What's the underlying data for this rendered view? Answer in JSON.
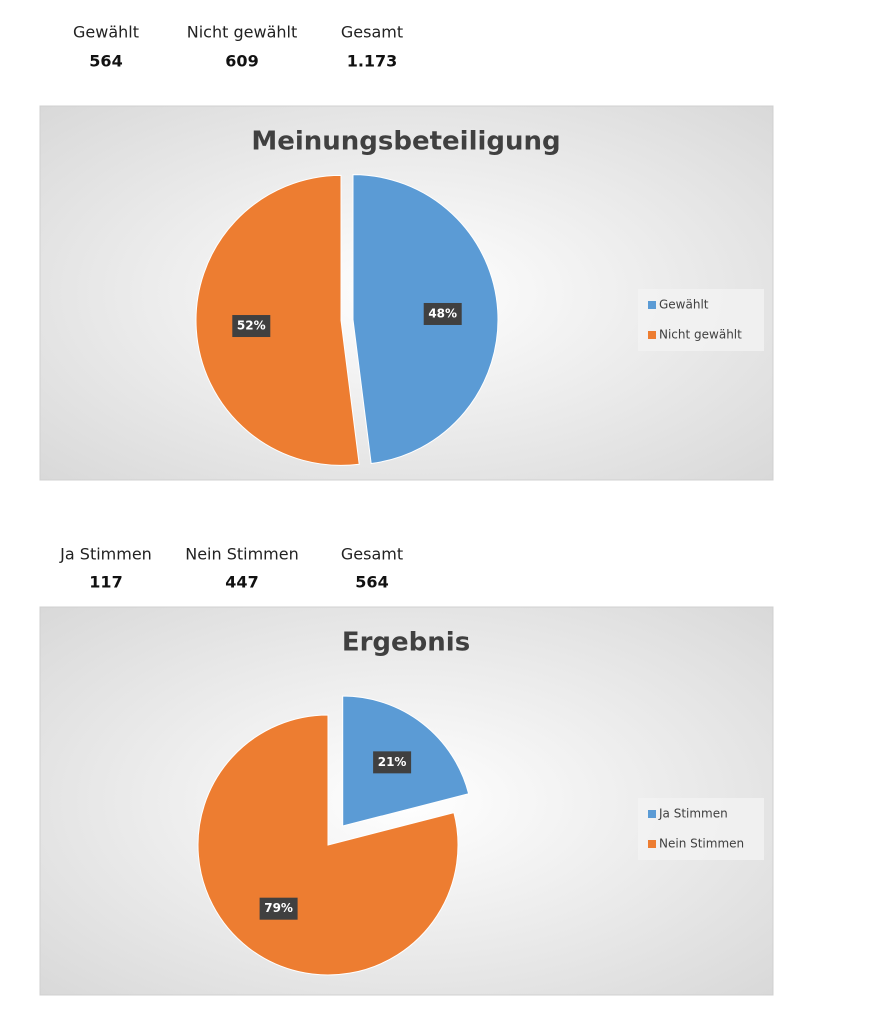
{
  "stats": [
    {
      "items": [
        {
          "label": "Gewählt",
          "value": 564
        },
        {
          "label": "Nicht gewählt",
          "value": 609
        },
        {
          "label": "Gesamt",
          "value": {
            "value": 1173,
            "label": "1.173"
          }
        }
      ]
    },
    {
      "items": [
        {
          "label": "Ja Stimmen",
          "value": 117
        },
        {
          "label": "Nein Stimmen",
          "value": 447
        },
        {
          "label": "Gesamt",
          "value": 564
        }
      ]
    }
  ],
  "chart_data": [
    {
      "type": "pie",
      "title": "Meinungsbeteiligung",
      "categories": [
        "Gewählt",
        "Nicht gewählt"
      ],
      "values": [
        48,
        52
      ],
      "value_labels": [
        "48%",
        "52%"
      ],
      "colors": [
        "#5b9bd5",
        "#ed7d31"
      ],
      "legend": "right"
    },
    {
      "type": "pie",
      "title": "Ergebnis",
      "categories": [
        "Ja Stimmen",
        "Nein Stimmen"
      ],
      "values": [
        21,
        79
      ],
      "value_labels": [
        "21%",
        "79%"
      ],
      "colors": [
        "#5b9bd5",
        "#ed7d31"
      ],
      "legend": "right"
    }
  ]
}
